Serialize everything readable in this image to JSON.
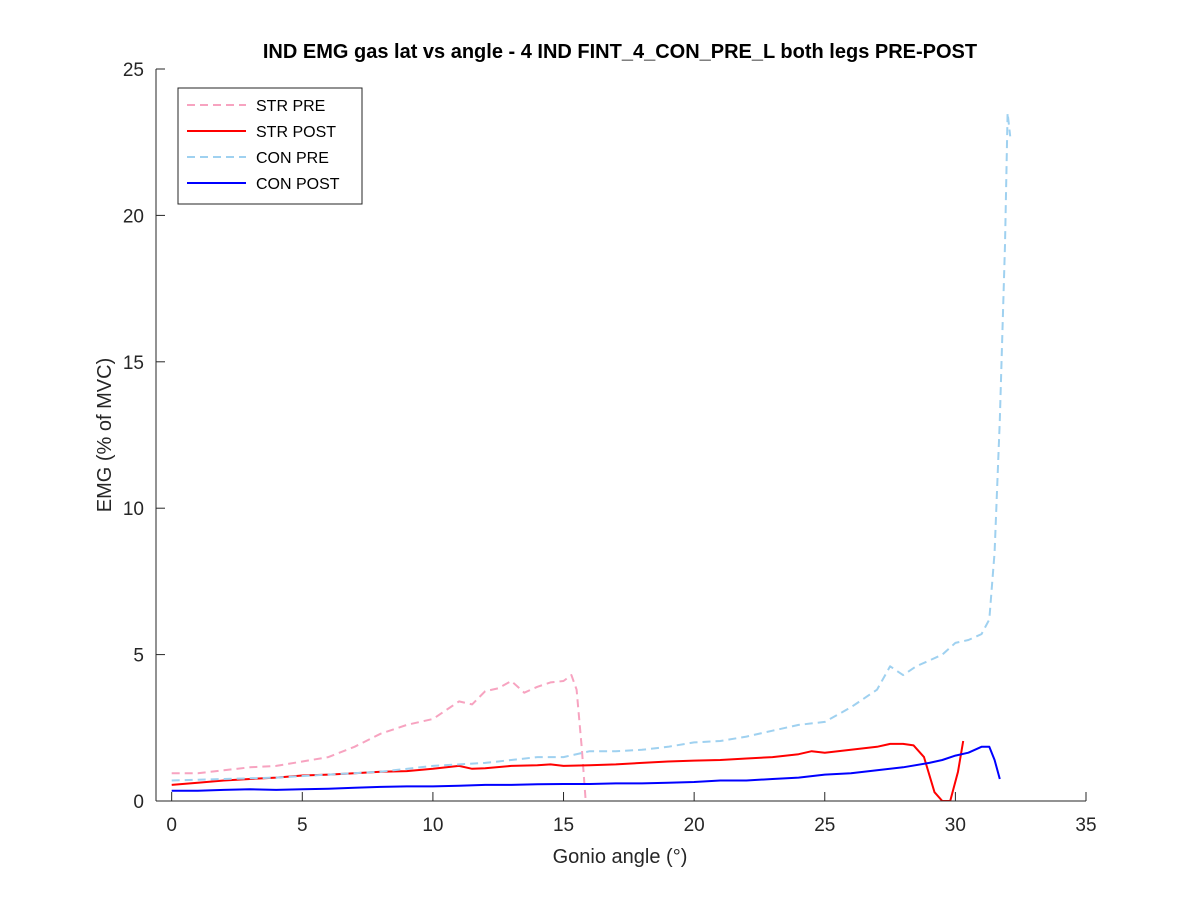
{
  "chart_data": {
    "type": "line",
    "title": "IND EMG gas lat vs angle - 4 IND FINT_4_CON_PRE_L both legs PRE-POST",
    "xlabel": "Gonio angle (°)",
    "ylabel": "EMG (% of MVC)",
    "xlim": [
      -0.6,
      35
    ],
    "ylim": [
      0,
      25
    ],
    "xticks": [
      0,
      5,
      10,
      15,
      20,
      25,
      30,
      35
    ],
    "yticks": [
      0,
      5,
      10,
      15,
      20,
      25
    ],
    "grid": false,
    "legend_position": "top-left",
    "series": [
      {
        "name": "STR PRE",
        "color": "#f7a3c0",
        "dash": "dashed",
        "x": [
          0,
          1,
          2,
          3,
          4,
          5,
          6,
          7,
          8,
          9,
          10,
          11,
          11.5,
          12,
          12.5,
          13,
          13.5,
          14,
          14.5,
          15,
          15.3,
          15.5,
          15.7,
          15.8,
          15.85
        ],
        "y": [
          0.95,
          0.95,
          1.05,
          1.15,
          1.2,
          1.35,
          1.5,
          1.85,
          2.3,
          2.6,
          2.8,
          3.4,
          3.3,
          3.75,
          3.85,
          4.1,
          3.7,
          3.9,
          4.05,
          4.1,
          4.3,
          3.8,
          1.8,
          0.6,
          0
        ]
      },
      {
        "name": "STR POST",
        "color": "#ff0000",
        "dash": "solid",
        "x": [
          0,
          1,
          2,
          3,
          4,
          5,
          6,
          7,
          8,
          9,
          10,
          11,
          11.5,
          12,
          13,
          14,
          14.5,
          15,
          16,
          17,
          18,
          19,
          20,
          21,
          22,
          23,
          24,
          24.5,
          25,
          26,
          27,
          27.5,
          28,
          28.4,
          28.8,
          29.2,
          29.5,
          29.8,
          30.1,
          30.3
        ],
        "y": [
          0.55,
          0.62,
          0.7,
          0.75,
          0.8,
          0.87,
          0.9,
          0.95,
          1.0,
          1.02,
          1.1,
          1.2,
          1.1,
          1.12,
          1.2,
          1.22,
          1.25,
          1.2,
          1.22,
          1.25,
          1.3,
          1.35,
          1.38,
          1.4,
          1.45,
          1.5,
          1.6,
          1.7,
          1.65,
          1.75,
          1.85,
          1.95,
          1.95,
          1.9,
          1.5,
          0.3,
          0,
          0,
          1.0,
          2.05
        ]
      },
      {
        "name": "CON PRE",
        "color": "#9fd1f0",
        "dash": "dashed",
        "x": [
          0,
          2,
          4,
          6,
          8,
          10,
          12,
          14,
          15,
          16,
          17,
          18,
          19,
          20,
          21,
          22,
          23,
          24,
          25,
          26,
          27,
          27.5,
          28,
          28.5,
          29,
          29.5,
          30,
          30.5,
          31,
          31.3,
          31.5,
          31.7,
          31.9,
          32.0,
          32.1
        ],
        "y": [
          0.7,
          0.75,
          0.8,
          0.9,
          1.0,
          1.2,
          1.3,
          1.5,
          1.5,
          1.7,
          1.7,
          1.75,
          1.85,
          2.0,
          2.05,
          2.2,
          2.4,
          2.6,
          2.7,
          3.2,
          3.8,
          4.6,
          4.3,
          4.6,
          4.8,
          5.0,
          5.4,
          5.5,
          5.7,
          6.2,
          8.5,
          13.0,
          19.0,
          23.5,
          22.7
        ]
      },
      {
        "name": "CON POST",
        "color": "#0000ff",
        "dash": "solid",
        "x": [
          0,
          1,
          2,
          3,
          4,
          5,
          6,
          7,
          8,
          9,
          10,
          11,
          12,
          13,
          14,
          15,
          16,
          17,
          18,
          19,
          20,
          21,
          22,
          23,
          24,
          25,
          26,
          27,
          28,
          29,
          29.5,
          30,
          30.5,
          31,
          31.3,
          31.5,
          31.7
        ],
        "y": [
          0.35,
          0.35,
          0.38,
          0.4,
          0.38,
          0.4,
          0.42,
          0.45,
          0.48,
          0.5,
          0.5,
          0.52,
          0.55,
          0.55,
          0.57,
          0.58,
          0.58,
          0.6,
          0.6,
          0.62,
          0.65,
          0.7,
          0.7,
          0.75,
          0.8,
          0.9,
          0.95,
          1.05,
          1.15,
          1.3,
          1.4,
          1.55,
          1.65,
          1.85,
          1.85,
          1.4,
          0.75
        ]
      }
    ]
  }
}
